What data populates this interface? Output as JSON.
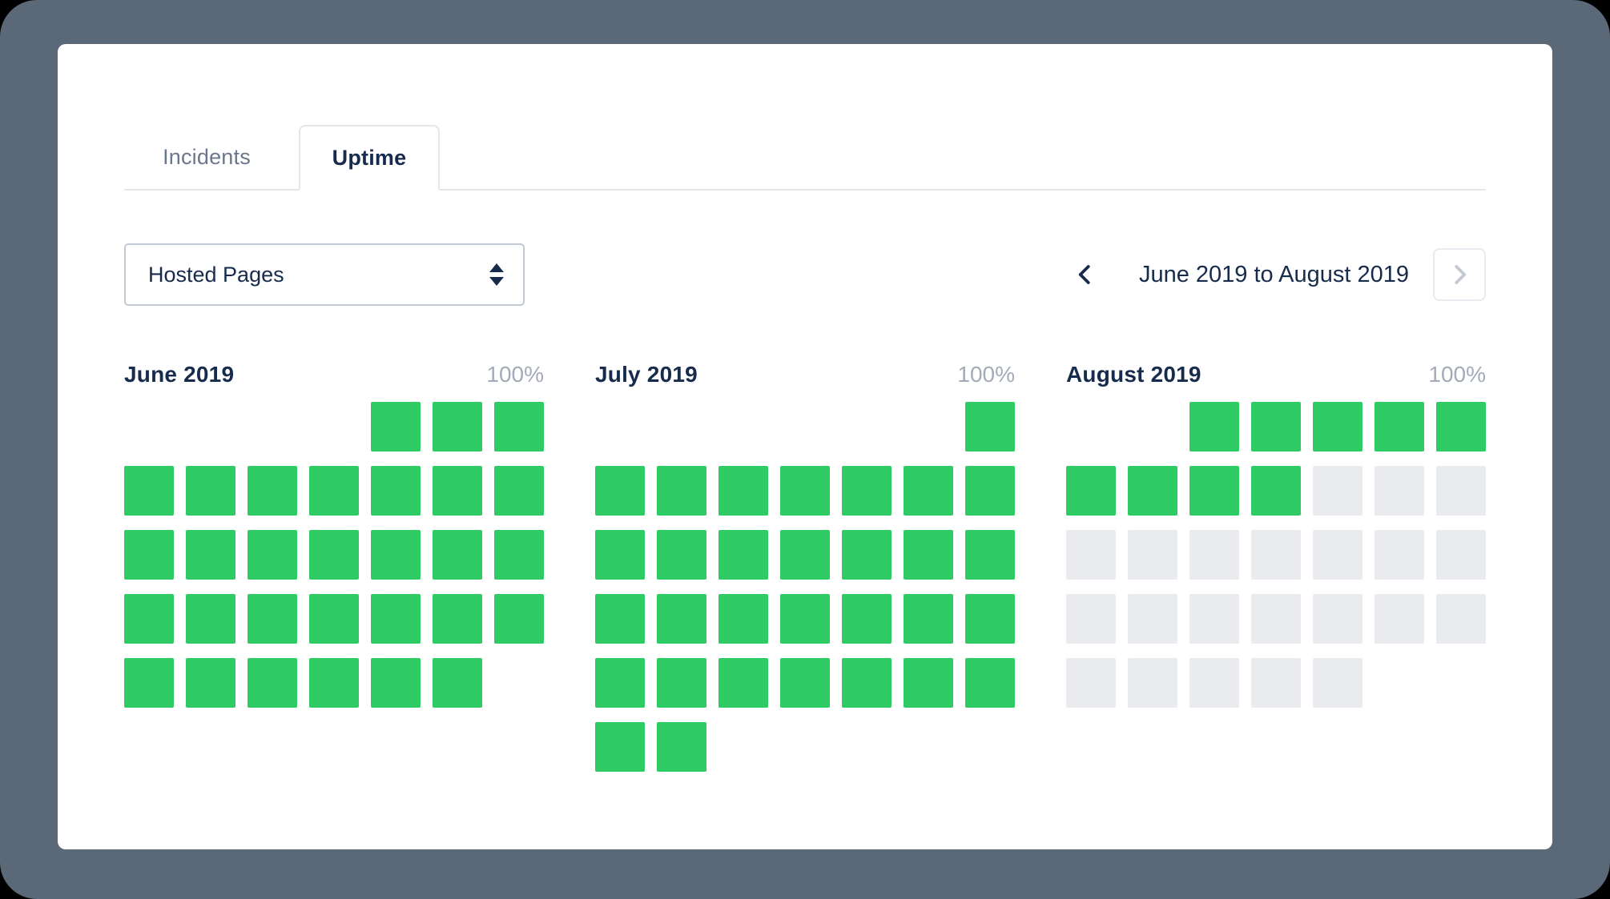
{
  "colors": {
    "accent_green": "#2fcc66",
    "future_gray": "#e9ebee",
    "frame": "#5b6878",
    "navy": "#172b4d"
  },
  "tabs": {
    "incidents": "Incidents",
    "uptime": "Uptime"
  },
  "filter": {
    "selected_option": "Hosted Pages"
  },
  "range_nav": {
    "label": "June 2019 to August 2019"
  },
  "cell_states": {
    "0": "empty",
    "1": "up",
    "2": "future"
  },
  "months": [
    {
      "name": "June 2019",
      "uptime_label": "100%",
      "cells": [
        [
          0,
          0,
          0,
          0,
          1,
          1,
          1
        ],
        [
          1,
          1,
          1,
          1,
          1,
          1,
          1
        ],
        [
          1,
          1,
          1,
          1,
          1,
          1,
          1
        ],
        [
          1,
          1,
          1,
          1,
          1,
          1,
          1
        ],
        [
          1,
          1,
          1,
          1,
          1,
          1,
          0
        ]
      ]
    },
    {
      "name": "July 2019",
      "uptime_label": "100%",
      "cells": [
        [
          0,
          0,
          0,
          0,
          0,
          0,
          1
        ],
        [
          1,
          1,
          1,
          1,
          1,
          1,
          1
        ],
        [
          1,
          1,
          1,
          1,
          1,
          1,
          1
        ],
        [
          1,
          1,
          1,
          1,
          1,
          1,
          1
        ],
        [
          1,
          1,
          1,
          1,
          1,
          1,
          1
        ],
        [
          1,
          1,
          0,
          0,
          0,
          0,
          0
        ]
      ]
    },
    {
      "name": "August 2019",
      "uptime_label": "100%",
      "cells": [
        [
          0,
          0,
          1,
          1,
          1,
          1,
          1
        ],
        [
          1,
          1,
          1,
          1,
          2,
          2,
          2
        ],
        [
          2,
          2,
          2,
          2,
          2,
          2,
          2
        ],
        [
          2,
          2,
          2,
          2,
          2,
          2,
          2
        ],
        [
          2,
          2,
          2,
          2,
          2,
          0,
          0
        ]
      ]
    }
  ]
}
